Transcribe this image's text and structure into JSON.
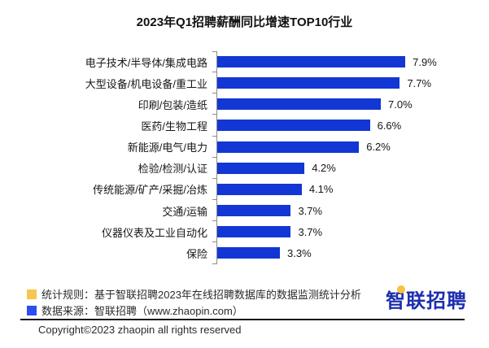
{
  "title": "2023年Q1招聘薪酬同比增速TOP10行业",
  "chart_data": {
    "type": "bar",
    "orientation": "horizontal",
    "title": "2023年Q1招聘薪酬同比增速TOP10行业",
    "categories": [
      "电子技术/半导体/集成电路",
      "大型设备/机电设备/重工业",
      "印刷/包装/造纸",
      "医药/生物工程",
      "新能源/电气/电力",
      "检验/检测/认证",
      "传统能源/矿产/采掘/冶炼",
      "交通/运输",
      "仪器仪表及工业自动化",
      "保险"
    ],
    "values": [
      7.9,
      7.7,
      7.0,
      6.6,
      6.2,
      4.2,
      4.1,
      3.7,
      3.7,
      3.3
    ],
    "value_labels": [
      "7.9%",
      "7.7%",
      "7.0%",
      "6.6%",
      "6.2%",
      "4.2%",
      "4.1%",
      "3.7%",
      "3.7%",
      "3.3%"
    ],
    "xlabel": "",
    "ylabel": "",
    "xlim": [
      1,
      9
    ],
    "grid": false,
    "legend": false,
    "bar_color": "#1237d4",
    "axis_color": "#8c8c8c"
  },
  "footnotes": [
    {
      "marker_color": "#f7c64d",
      "text": "统计规则：基于智联招聘2023年在线招聘数据库的数据监测统计分析"
    },
    {
      "marker_color": "#2c4ef0",
      "text": "数据来源：智联招聘（www.zhaopin.com）"
    }
  ],
  "logo": {
    "text": "智联招聘",
    "color": "#1d2fae",
    "dot_color": "#f9c23c"
  },
  "copyright": "Copyright©2023 zhaopin all rights reserved"
}
